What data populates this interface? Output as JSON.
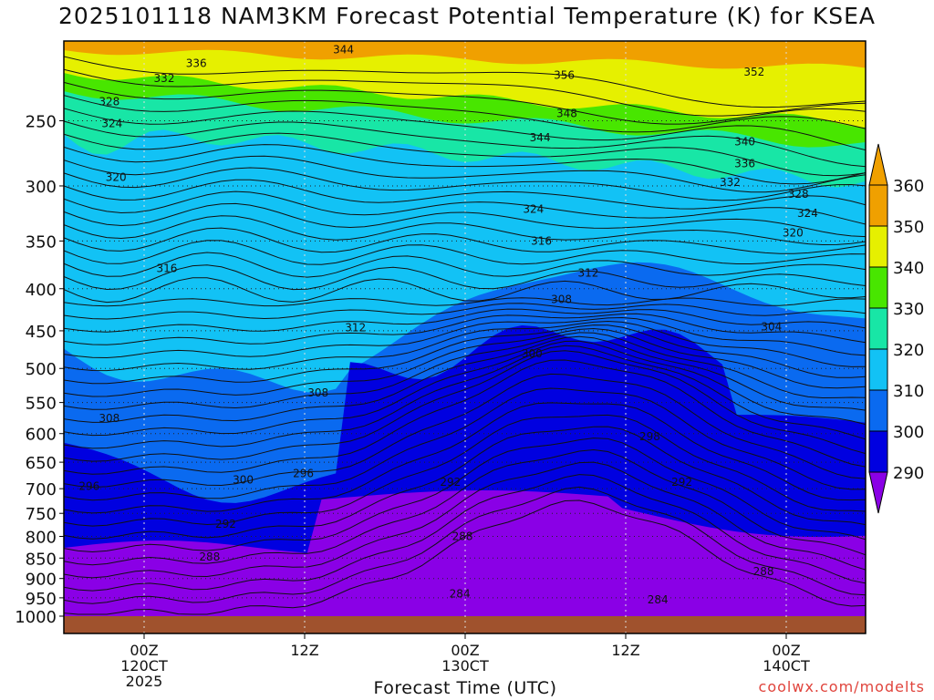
{
  "chart_data": {
    "type": "contour",
    "title": "2025101118 NAM3KM Forecast Potential Temperature (K) for KSEA",
    "xlabel": "Forecast Time (UTC)",
    "ylabel": "",
    "y_scale": "log",
    "y_inverted": true,
    "ylim": [
      1000,
      200
    ],
    "y_ticks": [
      250,
      300,
      350,
      400,
      450,
      500,
      550,
      600,
      650,
      700,
      750,
      800,
      850,
      900,
      950,
      1000
    ],
    "x_ticks": [
      {
        "line1": "00Z",
        "line2": "120CT",
        "line3": "2025"
      },
      {
        "line1": "12Z",
        "line2": "",
        "line3": ""
      },
      {
        "line1": "00Z",
        "line2": "130CT",
        "line3": ""
      },
      {
        "line1": "12Z",
        "line2": "",
        "line3": ""
      },
      {
        "line1": "00Z",
        "line2": "140CT",
        "line3": ""
      }
    ],
    "colorbar": {
      "levels": [
        290,
        300,
        310,
        320,
        330,
        340,
        350,
        360
      ],
      "colors": [
        "#8a00e6",
        "#0000e0",
        "#0a6af0",
        "#12c2f5",
        "#18e6a6",
        "#48e600",
        "#e6f000",
        "#f0a000"
      ]
    },
    "contour_labels": [
      {
        "value": "344",
        "t": 14.9,
        "p": 205
      },
      {
        "value": "336",
        "t": 3.9,
        "p": 213
      },
      {
        "value": "332",
        "t": 1.5,
        "p": 222
      },
      {
        "value": "328",
        "t": -2.6,
        "p": 237
      },
      {
        "value": "324",
        "t": -2.4,
        "p": 252
      },
      {
        "value": "320",
        "t": -2.1,
        "p": 293
      },
      {
        "value": "316",
        "t": 1.7,
        "p": 378
      },
      {
        "value": "312",
        "t": 15.8,
        "p": 446
      },
      {
        "value": "308",
        "t": 13.0,
        "p": 535
      },
      {
        "value": "308",
        "t": -2.6,
        "p": 575
      },
      {
        "value": "296",
        "t": -4.1,
        "p": 695
      },
      {
        "value": "300",
        "t": 7.4,
        "p": 683
      },
      {
        "value": "296",
        "t": 11.9,
        "p": 671
      },
      {
        "value": "292",
        "t": 6.1,
        "p": 773
      },
      {
        "value": "288",
        "t": 4.9,
        "p": 847
      },
      {
        "value": "292",
        "t": 22.9,
        "p": 687
      },
      {
        "value": "288",
        "t": 23.8,
        "p": 800
      },
      {
        "value": "284",
        "t": 23.6,
        "p": 939
      },
      {
        "value": "356",
        "t": 31.4,
        "p": 220
      },
      {
        "value": "352",
        "t": 45.6,
        "p": 218
      },
      {
        "value": "348",
        "t": 31.6,
        "p": 245
      },
      {
        "value": "344",
        "t": 29.6,
        "p": 262
      },
      {
        "value": "340",
        "t": 44.9,
        "p": 265
      },
      {
        "value": "336",
        "t": 44.9,
        "p": 282
      },
      {
        "value": "332",
        "t": 43.8,
        "p": 297
      },
      {
        "value": "328",
        "t": 48.9,
        "p": 307
      },
      {
        "value": "324",
        "t": 49.6,
        "p": 324
      },
      {
        "value": "320",
        "t": 48.5,
        "p": 342
      },
      {
        "value": "324",
        "t": 29.1,
        "p": 320
      },
      {
        "value": "316",
        "t": 29.7,
        "p": 350
      },
      {
        "value": "312",
        "t": 33.2,
        "p": 383
      },
      {
        "value": "308",
        "t": 31.2,
        "p": 412
      },
      {
        "value": "304",
        "t": 46.9,
        "p": 445
      },
      {
        "value": "300",
        "t": 29.0,
        "p": 480
      },
      {
        "value": "298",
        "t": 37.8,
        "p": 605
      },
      {
        "value": "292",
        "t": 40.2,
        "p": 687
      },
      {
        "value": "288",
        "t": 46.3,
        "p": 883
      },
      {
        "value": "284",
        "t": 38.4,
        "p": 955
      }
    ]
  },
  "credit": "coolwx.com/modelts"
}
